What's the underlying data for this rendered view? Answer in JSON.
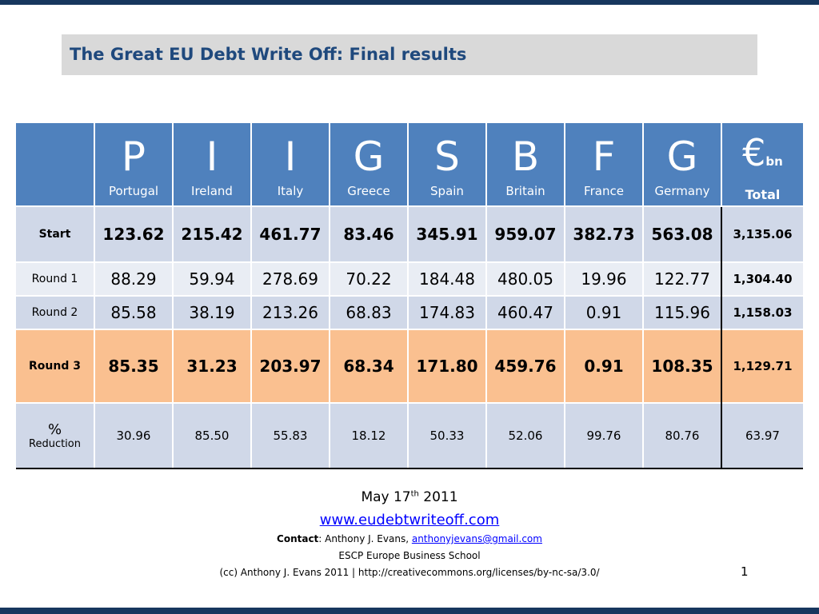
{
  "title": "The Great EU Debt Write Off: Final results",
  "columns": [
    {
      "letter": "P",
      "country": "Portugal"
    },
    {
      "letter": "I",
      "country": "Ireland"
    },
    {
      "letter": "I",
      "country": "Italy"
    },
    {
      "letter": "G",
      "country": "Greece"
    },
    {
      "letter": "S",
      "country": "Spain"
    },
    {
      "letter": "B",
      "country": "Britain"
    },
    {
      "letter": "F",
      "country": "France"
    },
    {
      "letter": "G",
      "country": "Germany"
    }
  ],
  "total_header": {
    "symbol": "€",
    "unit": "bn",
    "label": "Total"
  },
  "rows": [
    {
      "label": "Start",
      "values": [
        "123.62",
        "215.42",
        "461.77",
        "83.46",
        "345.91",
        "959.07",
        "382.73",
        "563.08"
      ],
      "total": "3,135.06"
    },
    {
      "label": "Round 1",
      "values": [
        "88.29",
        "59.94",
        "278.69",
        "70.22",
        "184.48",
        "480.05",
        "19.96",
        "122.77"
      ],
      "total": "1,304.40"
    },
    {
      "label": "Round 2",
      "values": [
        "85.58",
        "38.19",
        "213.26",
        "68.83",
        "174.83",
        "460.47",
        "0.91",
        "115.96"
      ],
      "total": "1,158.03"
    },
    {
      "label": "Round 3",
      "values": [
        "85.35",
        "31.23",
        "203.97",
        "68.34",
        "171.80",
        "459.76",
        "0.91",
        "108.35"
      ],
      "total": "1,129.71"
    }
  ],
  "reduction_row": {
    "label_symbol": "%",
    "label_word": "Reduction",
    "values": [
      "30.96",
      "85.50",
      "55.83",
      "18.12",
      "50.33",
      "52.06",
      "99.76",
      "80.76"
    ],
    "total": "63.97"
  },
  "footer": {
    "date_prefix": "May 17",
    "date_sup": "th",
    "date_suffix": " 2011",
    "url": "www.eudebtwriteoff.com",
    "contact_label": "Contact",
    "contact_text": ": Anthony J. Evans, ",
    "contact_email": "anthonyjevans@gmail.com",
    "school": "ESCP Europe Business School",
    "license": "(cc) Anthony J. Evans 2011 | http://creativecommons.org/licenses/by-nc-sa/3.0/"
  },
  "page_number": "1",
  "colors": {
    "header_blue": "#4f81bd",
    "title_text": "#1f497d",
    "row_light": "#d0d8e8",
    "row_lighter": "#e9edf4",
    "highlight_orange": "#fac090",
    "bar_navy": "#17375e"
  }
}
